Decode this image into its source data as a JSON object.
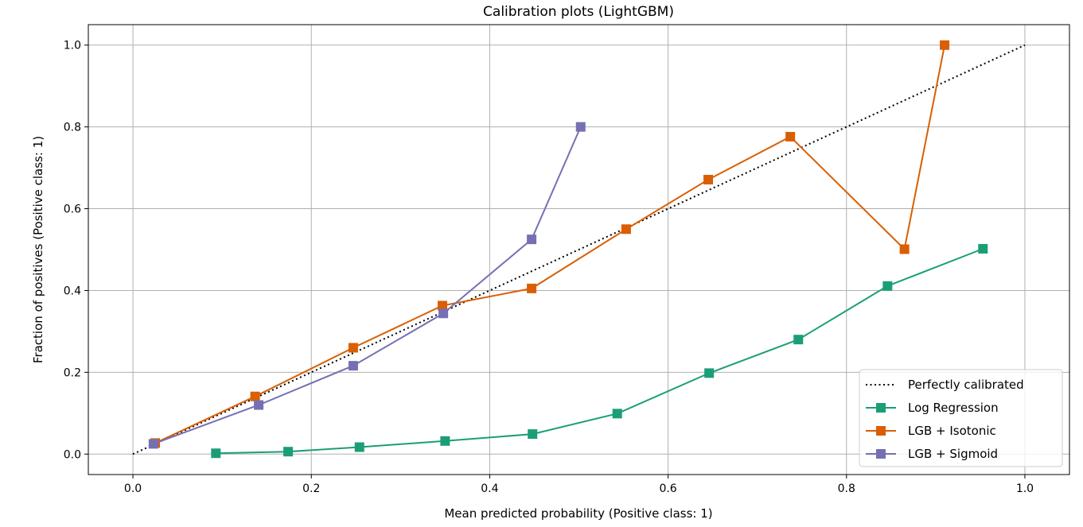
{
  "chart_data": {
    "type": "line",
    "title": "Calibration plots (LightGBM)",
    "xlabel": "Mean predicted probability (Positive class: 1)",
    "ylabel": "Fraction of positives (Positive class: 1)",
    "xlim": [
      -0.05,
      1.05
    ],
    "ylim": [
      -0.05,
      1.05
    ],
    "xticks": [
      0.0,
      0.2,
      0.4,
      0.6,
      0.8,
      1.0
    ],
    "yticks": [
      0.0,
      0.2,
      0.4,
      0.6,
      0.8,
      1.0
    ],
    "xtick_labels": [
      "0.0",
      "0.2",
      "0.4",
      "0.6",
      "0.8",
      "1.0"
    ],
    "ytick_labels": [
      "0.0",
      "0.2",
      "0.4",
      "0.6",
      "0.8",
      "1.0"
    ],
    "grid": true,
    "legend_position": "lower-right",
    "reference": {
      "name": "Perfectly calibrated",
      "color": "#000000",
      "style": "dotted",
      "x": [
        0.0,
        1.0
      ],
      "y": [
        0.0,
        1.0
      ]
    },
    "series": [
      {
        "name": "Log Regression",
        "color": "#1b9e77",
        "marker": "square",
        "x": [
          0.093,
          0.174,
          0.254,
          0.35,
          0.448,
          0.543,
          0.646,
          0.746,
          0.846,
          0.953
        ],
        "y": [
          0.002,
          0.006,
          0.017,
          0.032,
          0.049,
          0.099,
          0.198,
          0.28,
          0.411,
          0.502
        ]
      },
      {
        "name": "LGB + Isotonic",
        "color": "#d95f02",
        "marker": "square",
        "x": [
          0.025,
          0.137,
          0.247,
          0.347,
          0.447,
          0.553,
          0.645,
          0.737,
          0.865,
          0.91
        ],
        "y": [
          0.027,
          0.141,
          0.26,
          0.363,
          0.405,
          0.55,
          0.671,
          0.776,
          0.501,
          1.0
        ]
      },
      {
        "name": "LGB + Sigmoid",
        "color": "#7570b3",
        "marker": "square",
        "x": [
          0.023,
          0.141,
          0.247,
          0.348,
          0.447,
          0.502
        ],
        "y": [
          0.025,
          0.12,
          0.216,
          0.344,
          0.525,
          0.8
        ]
      }
    ]
  }
}
